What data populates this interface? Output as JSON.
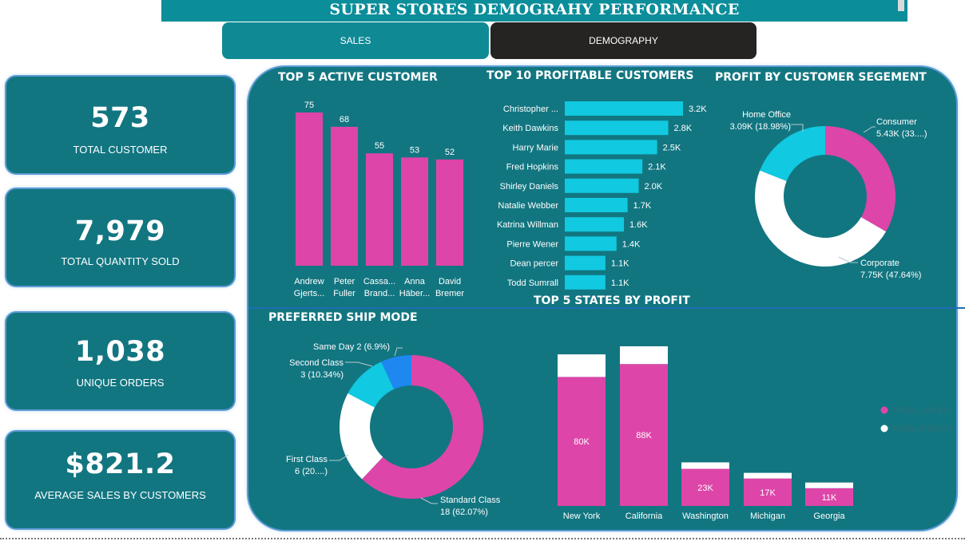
{
  "header": {
    "title": "SUPER STORES DEMOGRAHY PERFORMANCE"
  },
  "nav": {
    "sales": "SALES",
    "demography": "DEMOGRAPHY"
  },
  "kpis": [
    {
      "value": "573",
      "label": "TOTAL CUSTOMER"
    },
    {
      "value": "7,979",
      "label": "TOTAL QUANTITY SOLD"
    },
    {
      "value": "1,038",
      "label": "UNIQUE ORDERS"
    },
    {
      "value": "$821.2",
      "label": "AVERAGE SALES BY CUSTOMERS"
    }
  ],
  "colors": {
    "pink": "#de45a8",
    "cyan": "#11c9e0",
    "white": "#ffffff",
    "blue": "#1e88f0",
    "panel": "#127681",
    "title_bar": "#0b8d9a"
  },
  "sections": {
    "top5": "TOP 5 ACTIVE CUSTOMER",
    "top10": "TOP 10 PROFITABLE CUSTOMERS",
    "segment": "PROFIT BY CUSTOMER SEGEMENT",
    "ship": "PREFERRED SHIP MODE",
    "states": "TOP 5 STATES BY PROFIT"
  },
  "chart_data": [
    {
      "id": "top5",
      "type": "bar",
      "title": "TOP 5 ACTIVE CUSTOMER",
      "categories": [
        [
          "Andrew",
          "Gjerts..."
        ],
        [
          "Peter",
          "Fuller"
        ],
        [
          "Cassa...",
          "Brand..."
        ],
        [
          "Anna",
          "Häber..."
        ],
        [
          "David",
          "Bremer"
        ]
      ],
      "values": [
        75,
        68,
        55,
        53,
        52
      ],
      "labels": [
        "75",
        "68",
        "55",
        "53",
        "52"
      ]
    },
    {
      "id": "top10",
      "type": "bar",
      "orientation": "horizontal",
      "title": "TOP 10 PROFITABLE CUSTOMERS",
      "categories": [
        "Christopher ...",
        "Keith Dawkins",
        "Harry Marie",
        "Fred Hopkins",
        "Shirley Daniels",
        "Natalie Webber",
        "Katrina Willman",
        "Pierre Wener",
        "Dean percer",
        "Todd Sumrall"
      ],
      "values": [
        3200,
        2800,
        2500,
        2100,
        2000,
        1700,
        1600,
        1400,
        1100,
        1100
      ],
      "labels": [
        "3.2K",
        "2.8K",
        "2.5K",
        "2.1K",
        "2.0K",
        "1.7K",
        "1.6K",
        "1.4K",
        "1.1K",
        "1.1K"
      ]
    },
    {
      "id": "segment",
      "type": "pie",
      "title": "PROFIT BY CUSTOMER SEGEMENT",
      "slices": [
        {
          "name": "Consumer",
          "value": 5430,
          "share": 33.38,
          "label": "5.43K (33....)",
          "color": "#de45a8"
        },
        {
          "name": "Corporate",
          "value": 7750,
          "share": 47.64,
          "label": "7.75K (47.64%)",
          "color": "#ffffff"
        },
        {
          "name": "Home Office",
          "value": 3090,
          "share": 18.98,
          "label": "3.09K (18.98%)",
          "color": "#11c9e0"
        }
      ]
    },
    {
      "id": "ship",
      "type": "pie",
      "title": "PREFERRED SHIP MODE",
      "slices": [
        {
          "name": "Standard Class",
          "value": 18,
          "share": 62.07,
          "label": "18 (62.07%)",
          "color": "#de45a8"
        },
        {
          "name": "First Class",
          "value": 6,
          "share": 20.69,
          "label": "6 (20....)",
          "color": "#ffffff"
        },
        {
          "name": "Second Class",
          "value": 3,
          "share": 10.34,
          "label": "3 (10.34%)",
          "color": "#11c9e0"
        },
        {
          "name": "Same Day",
          "value": 2,
          "share": 6.9,
          "label": "2 (6.9%)",
          "color": "#1e88f0"
        }
      ]
    },
    {
      "id": "states",
      "type": "bar",
      "stacked": true,
      "title": "TOP 5 STATES BY PROFIT",
      "categories": [
        "New York",
        "California",
        "Washington",
        "Michigan",
        "Georgia"
      ],
      "series": [
        {
          "name": "TOTAL SALES",
          "values": [
            80000,
            88000,
            23000,
            17000,
            11000
          ],
          "labels": [
            "80K",
            "88K",
            "23K",
            "17K",
            "11K"
          ],
          "color": "#de45a8"
        },
        {
          "name": "TOTAL PROFIT",
          "values": [
            14000,
            11000,
            4000,
            3500,
            3500
          ],
          "color": "#ffffff"
        }
      ],
      "legend": "right"
    }
  ]
}
